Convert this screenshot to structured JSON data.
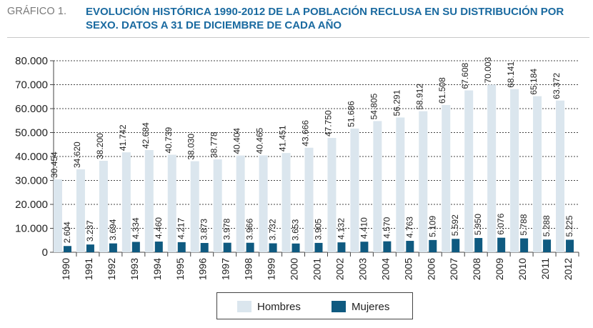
{
  "header": {
    "figure_label": "GRÁFICO 1.",
    "title": "EVOLUCIÓN HISTÓRICA 1990-2012 DE LA POBLACIÓN RECLUSA EN SU DISTRIBUCIÓN POR SEXO. DATOS A 31 DE DICIEMBRE DE CADA AÑO"
  },
  "colors": {
    "title": "#1a6aa0",
    "hombres": "#dbe6ee",
    "mujeres": "#0f5a80",
    "grid": "#444444"
  },
  "chart_data": {
    "type": "bar",
    "categories": [
      "1990",
      "1991",
      "1992",
      "1993",
      "1994",
      "1995",
      "1996",
      "1997",
      "1998",
      "1999",
      "2000",
      "2001",
      "2002",
      "2003",
      "2004",
      "2005",
      "2006",
      "2007",
      "2008",
      "2009",
      "2010",
      "2011",
      "2012"
    ],
    "series": [
      {
        "name": "Hombres",
        "values": [
          30454,
          34620,
          38200,
          41742,
          42684,
          40739,
          38030,
          38778,
          40404,
          40465,
          41451,
          43666,
          47750,
          51686,
          54805,
          56291,
          58912,
          61508,
          67608,
          70003,
          68141,
          65184,
          63372
        ],
        "labels": [
          "30.454",
          "34.620",
          "38.200",
          "41.742",
          "42.684",
          "40.739",
          "38.030",
          "38.778",
          "40.404",
          "40.465",
          "41.451",
          "43.666",
          "47.750",
          "51.686",
          "54.805",
          "56.291",
          "58.912",
          "61.508",
          "67.608",
          "70.003",
          "68.141",
          "65.184",
          "63.372"
        ]
      },
      {
        "name": "Mujeres",
        "values": [
          2604,
          3237,
          3694,
          4334,
          4460,
          4217,
          3873,
          3978,
          3966,
          3732,
          3653,
          3905,
          4132,
          4410,
          4570,
          4763,
          5109,
          5592,
          5950,
          6076,
          5788,
          5288,
          5225
        ],
        "labels": [
          "2.604",
          "3.237",
          "3.694",
          "4.334",
          "4.460",
          "4.217",
          "3.873",
          "3.978",
          "3.966",
          "3.732",
          "3.653",
          "3.905",
          "4.132",
          "4.410",
          "4.570",
          "4.763",
          "5.109",
          "5.592",
          "5.950",
          "6.076",
          "5.788",
          "5.288",
          "5.225"
        ]
      }
    ],
    "ylim": [
      0,
      80000
    ],
    "yticks": [
      0,
      10000,
      20000,
      30000,
      40000,
      50000,
      60000,
      70000,
      80000
    ],
    "ytick_labels": [
      "0",
      "10.000",
      "20.000",
      "30.000",
      "40.000",
      "50.000",
      "60.000",
      "70.000",
      "80.000"
    ],
    "grid": true,
    "legend_position": "bottom-center"
  }
}
